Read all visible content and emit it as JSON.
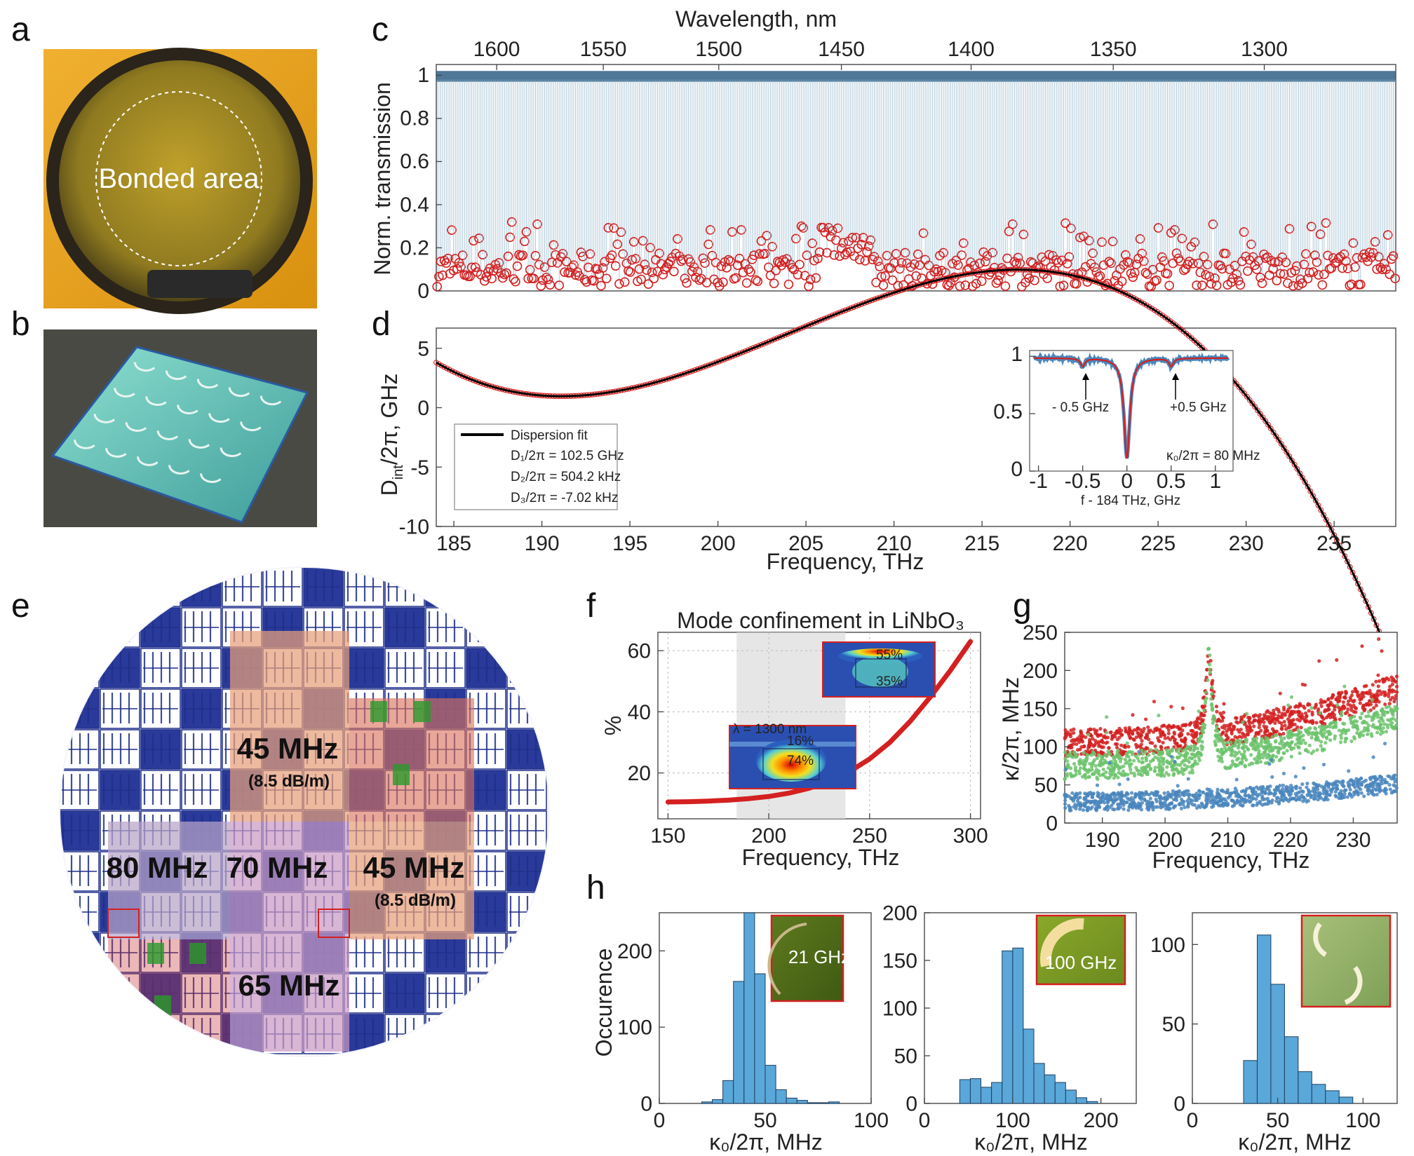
{
  "panels": {
    "a": {
      "letter": "a",
      "photo_label": "Bonded area"
    },
    "b": {
      "letter": "b"
    },
    "c": {
      "letter": "c"
    },
    "d": {
      "letter": "d"
    },
    "e": {
      "letter": "e"
    },
    "f": {
      "letter": "f"
    },
    "g": {
      "letter": "g"
    },
    "h": {
      "letter": "h"
    }
  },
  "wafer_map": {
    "zones": [
      {
        "label": "45 MHz",
        "sub": "(8.5 dB/m)",
        "tint": "#e8a07a"
      },
      {
        "label": "80 MHz",
        "sub": "",
        "tint": "#b9a4c8"
      },
      {
        "label": "70 MHz",
        "sub": "",
        "tint": "#c99ac4"
      },
      {
        "label": "45 MHz",
        "sub": "(8.5 dB/m)",
        "tint": "#e8a07a"
      },
      {
        "label": "65 MHz",
        "sub": "",
        "tint": "#c99ac4"
      }
    ]
  },
  "colors": {
    "blue_trace": "#2f5f86",
    "red": "#d42020",
    "green": "#6cc36c",
    "blue_dots": "#4a86bd",
    "hist": "#5aa7d9",
    "wafer_blue": "#1f2f8a"
  },
  "chart_data": [
    {
      "id": "c",
      "type": "line",
      "xlabel": "",
      "ylabel": "Norm. transmission",
      "top_axis_label": "Wavelength, nm",
      "top_ticks": [
        "1600",
        "1550",
        "1500",
        "1450",
        "1400",
        "1350",
        "1300"
      ],
      "top_tick_values_thz": [
        187.4,
        193.4,
        199.9,
        206.8,
        214.1,
        222.1,
        230.6
      ],
      "xlim": [
        184,
        238
      ],
      "ylim": [
        0,
        1.05
      ],
      "yticks": [
        0,
        0.2,
        0.4,
        0.6,
        0.8,
        1
      ],
      "ytick_labels": [
        "0",
        "0.2",
        "0.4",
        "0.6",
        "0.8",
        "1"
      ],
      "fsr_ghz": 102.5,
      "series": [
        {
          "style": "transmission dips",
          "color": "#2f5f86"
        },
        {
          "style": "open circles at dip minima",
          "color": "#d42020"
        }
      ]
    },
    {
      "id": "d",
      "type": "scatter",
      "xlabel": "Frequency, THz",
      "ylabel": "D_int/2π, GHz",
      "ylabel_main": "D",
      "ylabel_sub": "int",
      "ylabel_rest": "/2π, GHz",
      "xlim": [
        184,
        238.5
      ],
      "ylim": [
        -10,
        6.7
      ],
      "xticks": [
        185,
        190,
        195,
        200,
        205,
        210,
        215,
        220,
        225,
        230,
        235
      ],
      "yticks": [
        -10,
        -5,
        0,
        5
      ],
      "fit": {
        "f0": 184,
        "D2_khz": 504.2,
        "D3_khz": -7.02,
        "D1_ghz": 102.5,
        "offset_ghz": 1.9
      },
      "legend": {
        "fit_label": "Dispersion fit",
        "lines": [
          "D₁/2π = 102.5 GHz",
          "D₂/2π = 504.2 kHz",
          "D₃/2π = -7.02 kHz"
        ]
      },
      "inset": {
        "xlabel": "f - 184 THz, GHz",
        "xlim": [
          -1.1,
          1.2
        ],
        "ylim": [
          0,
          1.05
        ],
        "xticks": [
          -1,
          -0.5,
          0,
          0.5,
          1
        ],
        "yticks": [
          0,
          0.5,
          1
        ],
        "annotations": [
          "- 0.5 GHz",
          "+0.5 GHz",
          "κ₀/2π = 80 MHz"
        ]
      }
    },
    {
      "id": "f",
      "type": "line",
      "title": "Mode confinement in LiNbO₃",
      "xlabel": "Frequency, THz",
      "ylabel": "%",
      "xlim": [
        145,
        305
      ],
      "ylim": [
        5,
        66
      ],
      "xticks": [
        150,
        200,
        250,
        300
      ],
      "yticks": [
        20,
        40,
        60
      ],
      "shaded_range": [
        184,
        238
      ],
      "x": [
        150,
        160,
        170,
        180,
        190,
        200,
        210,
        220,
        230,
        240,
        250,
        260,
        270,
        280,
        290,
        300
      ],
      "values": [
        10.5,
        10.6,
        10.8,
        11.1,
        11.6,
        12.3,
        13.4,
        15.0,
        17.3,
        20.4,
        24.6,
        30.0,
        36.8,
        44.8,
        53.5,
        63.0
      ],
      "insets": [
        {
          "text_top": "16%",
          "text_mid": "74%",
          "wavelength": "λ = 1300 nm"
        },
        {
          "text_top": "55%",
          "text_mid": "35%"
        }
      ]
    },
    {
      "id": "g",
      "type": "scatter",
      "xlabel": "Frequency, THz",
      "ylabel": "κ/2π, MHz",
      "xlim": [
        184,
        237
      ],
      "ylim": [
        0,
        250
      ],
      "xticks": [
        190,
        200,
        210,
        220,
        230
      ],
      "yticks": [
        0,
        50,
        100,
        150,
        200,
        250
      ],
      "series": [
        {
          "color": "#d42020",
          "base_start": 105,
          "base_end": 178,
          "peak": 250
        },
        {
          "color": "#6cc36c",
          "base_start": 75,
          "base_end": 140,
          "peak": 240
        },
        {
          "color": "#4a86bd",
          "base_start": 28,
          "base_end": 52,
          "peak": 40
        }
      ],
      "peak_frequency": 207
    },
    {
      "id": "h1",
      "type": "bar",
      "xlabel": "κ₀/2π, MHz",
      "ylabel": "Occurence",
      "xlim": [
        0,
        100
      ],
      "ylim": [
        0,
        250
      ],
      "xticks": [
        0,
        50,
        100
      ],
      "yticks": [
        0,
        100,
        200
      ],
      "bin_edges": [
        20,
        25,
        30,
        35,
        40,
        45,
        50,
        55,
        60,
        65,
        70,
        75,
        80,
        85
      ],
      "values": [
        2,
        5,
        30,
        160,
        250,
        170,
        50,
        18,
        7,
        4,
        1,
        1,
        2
      ],
      "inset_label": "21 GHz"
    },
    {
      "id": "h2",
      "type": "bar",
      "xlabel": "κ₀/2π, MHz",
      "ylabel": "",
      "xlim": [
        0,
        240
      ],
      "ylim": [
        0,
        200
      ],
      "xticks": [
        0,
        100,
        200
      ],
      "yticks": [
        0,
        50,
        100,
        150,
        200
      ],
      "bin_edges": [
        40,
        52,
        64,
        76,
        88,
        100,
        112,
        124,
        136,
        148,
        160,
        172,
        184,
        196
      ],
      "values": [
        25,
        26,
        17,
        22,
        160,
        163,
        78,
        42,
        30,
        22,
        14,
        6,
        2
      ],
      "inset_label": "100 GHz"
    },
    {
      "id": "h3",
      "type": "bar",
      "xlabel": "κ₀/2π, MHz",
      "ylabel": "",
      "xlim": [
        0,
        120
      ],
      "ylim": [
        0,
        120
      ],
      "xticks": [
        0,
        50,
        100
      ],
      "yticks": [
        0,
        50,
        100
      ],
      "bin_edges": [
        30,
        38,
        46,
        54,
        62,
        70,
        78,
        86,
        94
      ],
      "values": [
        27,
        106,
        75,
        42,
        20,
        12,
        8,
        4
      ],
      "inset_label": ""
    }
  ]
}
